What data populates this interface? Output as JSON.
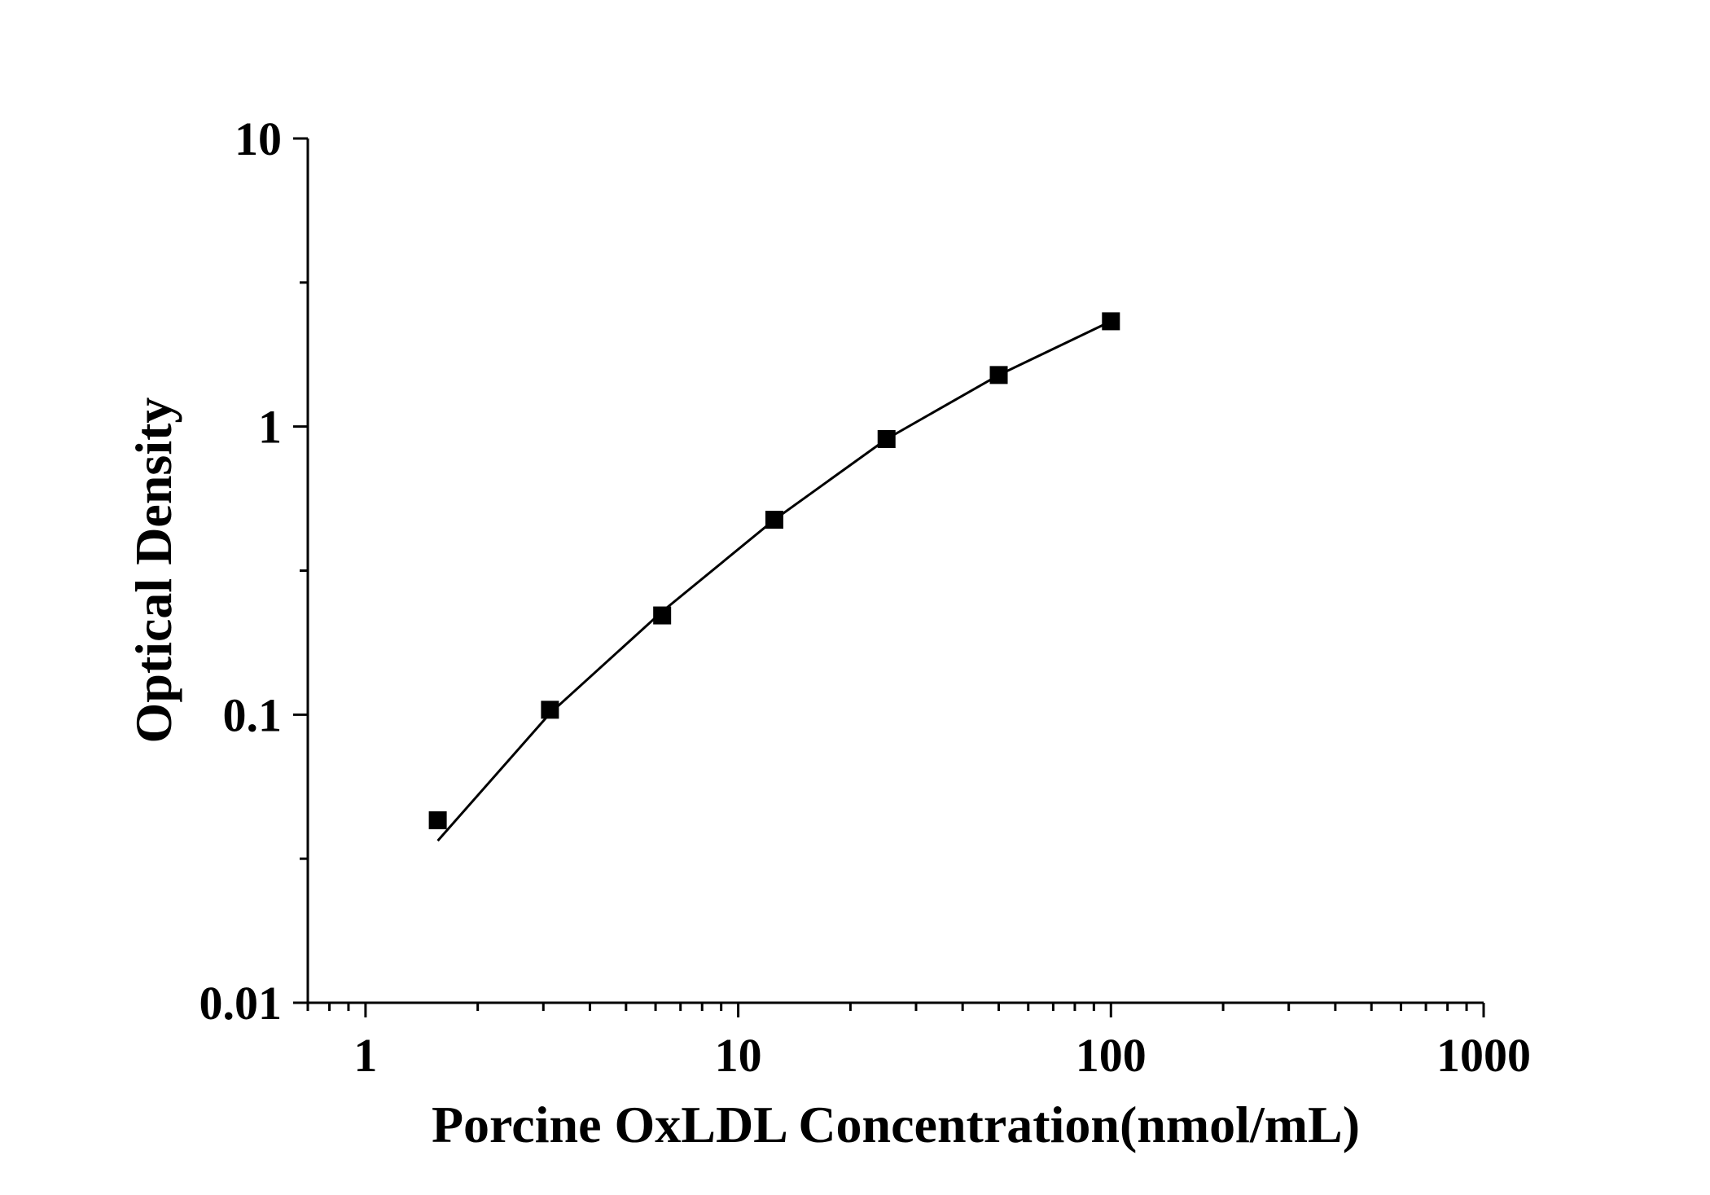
{
  "chart_data": {
    "type": "scatter",
    "title": "",
    "xlabel": "Porcine OxLDL Concentration(nmol/mL)",
    "ylabel": "Optical Density",
    "x_scale": "log",
    "y_scale": "log",
    "xlim": [
      0.7,
      1000
    ],
    "ylim": [
      0.01,
      10
    ],
    "x_ticks": [
      "1",
      "10",
      "100",
      "1000"
    ],
    "y_ticks": [
      "0.01",
      "0.1",
      "1",
      "10"
    ],
    "grid": false,
    "legend": "none",
    "marker": "square",
    "color": "#000000",
    "series": [
      {
        "x": [
          1.5625,
          3.125,
          6.25,
          12.5,
          25,
          50,
          100
        ],
        "y": [
          0.043,
          0.104,
          0.221,
          0.475,
          0.905,
          1.51,
          2.32
        ]
      }
    ],
    "fit_line": {
      "x": [
        1.5625,
        3.125,
        6.25,
        12.5,
        25,
        50,
        100
      ],
      "y": [
        0.0365,
        0.101,
        0.228,
        0.475,
        0.905,
        1.51,
        2.32
      ]
    }
  }
}
